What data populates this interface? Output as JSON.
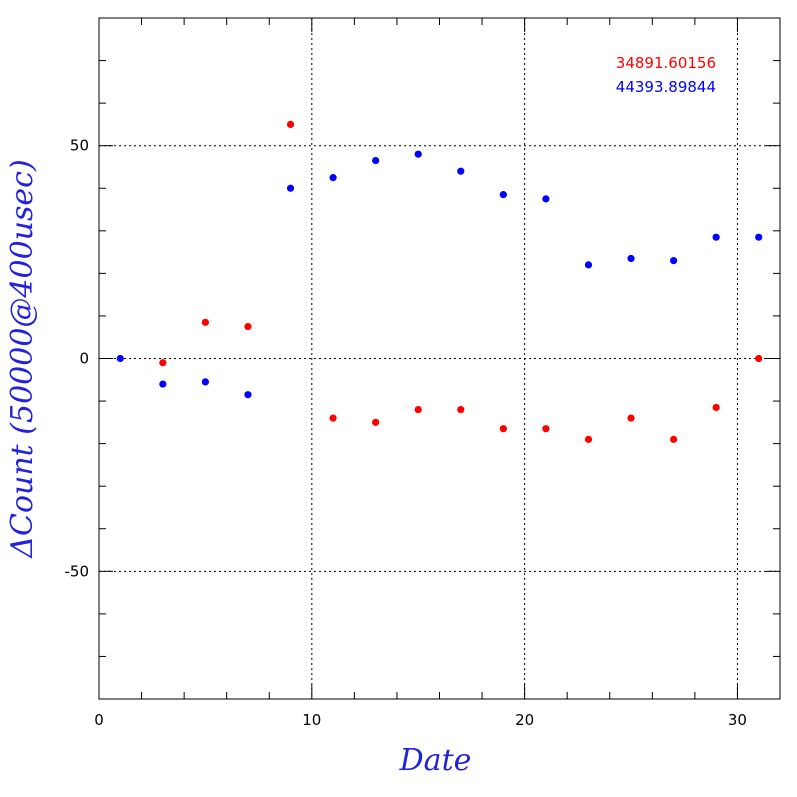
{
  "chart_data": {
    "type": "scatter",
    "title": "",
    "xlabel": "Date",
    "ylabel": "ΔCount (50000@400usec)",
    "xlim": [
      0,
      32
    ],
    "ylim": [
      -80,
      80
    ],
    "x_ticks": [
      0,
      10,
      20,
      30
    ],
    "y_ticks": [
      -50,
      0,
      50
    ],
    "grid": "dotted at major ticks",
    "legend_position": "top-right",
    "label_color": "#2222dd",
    "series": [
      {
        "name": "34891.60156",
        "color": "#ff0000",
        "points": [
          [
            3,
            -1
          ],
          [
            5,
            8.5
          ],
          [
            7,
            7.5
          ],
          [
            9,
            55
          ],
          [
            11,
            -14
          ],
          [
            13,
            -15
          ],
          [
            15,
            -12
          ],
          [
            17,
            -12
          ],
          [
            19,
            -16.5
          ],
          [
            21,
            -16.5
          ],
          [
            23,
            -19
          ],
          [
            25,
            -14
          ],
          [
            27,
            -19
          ],
          [
            29,
            -11.5
          ],
          [
            31,
            0
          ]
        ]
      },
      {
        "name": "44393.89844",
        "color": "#0000ff",
        "points": [
          [
            1,
            0
          ],
          [
            3,
            -6
          ],
          [
            5,
            -5.5
          ],
          [
            7,
            -8.5
          ],
          [
            9,
            40
          ],
          [
            11,
            42.5
          ],
          [
            13,
            46.5
          ],
          [
            15,
            48
          ],
          [
            17,
            44
          ],
          [
            19,
            38.5
          ],
          [
            21,
            37.5
          ],
          [
            23,
            22
          ],
          [
            25,
            23.5
          ],
          [
            27,
            23
          ],
          [
            29,
            28.5
          ],
          [
            31,
            28.5
          ]
        ]
      }
    ]
  }
}
